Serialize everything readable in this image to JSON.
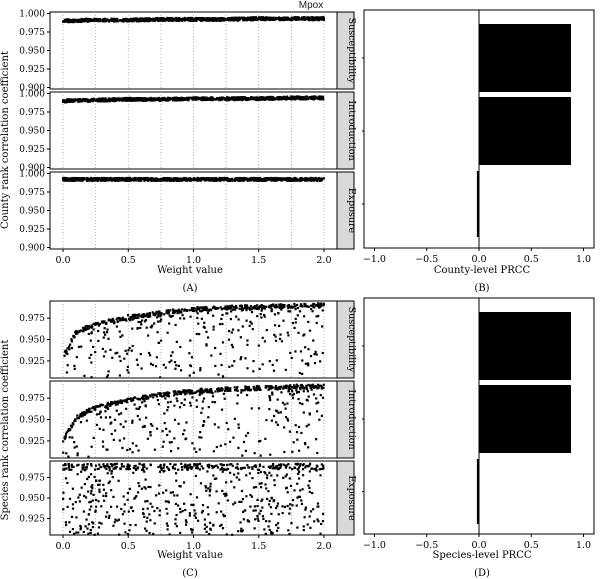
{
  "figure": {
    "title": "Mpox",
    "panel_labels": [
      "(A)",
      "(B)",
      "(C)",
      "(D)"
    ],
    "facet_labels": [
      "Susceptibility",
      "Introduction",
      "Exposure"
    ]
  },
  "chart_data": [
    {
      "id": "A",
      "type": "scatter",
      "subtype": "faceted",
      "facets": [
        "Susceptibility",
        "Introduction",
        "Exposure"
      ],
      "xlabel": "Weight value",
      "ylabel": "County rank correlation coefficient",
      "xlim": [
        -0.1,
        2.1
      ],
      "ylim": [
        0.898,
        1.002
      ],
      "xticks": [
        "0.0",
        "0.5",
        "1.0",
        "1.5",
        "2.0"
      ],
      "yticks": [
        "0.900",
        "0.925",
        "0.950",
        "0.975",
        "1.000"
      ],
      "series": [
        {
          "name": "Susceptibility",
          "x": [
            0.0,
            0.25,
            0.5,
            0.75,
            1.0,
            1.25,
            1.5,
            1.75,
            2.0
          ],
          "y": [
            0.99,
            0.991,
            0.991,
            0.992,
            0.992,
            0.992,
            0.993,
            0.993,
            0.993
          ]
        },
        {
          "name": "Introduction",
          "x": [
            0.0,
            0.25,
            0.5,
            0.75,
            1.0,
            1.25,
            1.5,
            1.75,
            2.0
          ],
          "y": [
            0.99,
            0.991,
            0.992,
            0.992,
            0.993,
            0.993,
            0.993,
            0.994,
            0.994
          ]
        },
        {
          "name": "Exposure",
          "x": [
            0.0,
            0.25,
            0.5,
            0.75,
            1.0,
            1.25,
            1.5,
            1.75,
            2.0
          ],
          "y": [
            0.992,
            0.992,
            0.992,
            0.992,
            0.992,
            0.992,
            0.992,
            0.992,
            0.992
          ]
        }
      ],
      "grid": "vertical dotted"
    },
    {
      "id": "B",
      "type": "bar",
      "orientation": "horizontal",
      "categories": [
        "Susceptibility",
        "Introduction",
        "Exposure"
      ],
      "values": [
        0.88,
        0.88,
        -0.02
      ],
      "xlabel": "County-level PRCC",
      "xlim": [
        -1.1,
        1.1
      ],
      "xticks": [
        "−1.0",
        "−0.5",
        "0.0",
        "0.5",
        "1.0"
      ]
    },
    {
      "id": "C",
      "type": "scatter",
      "subtype": "faceted",
      "facets": [
        "Susceptibility",
        "Introduction",
        "Exposure"
      ],
      "xlabel": "Weight value",
      "ylabel": "Species rank correlation coefficient",
      "xlim": [
        -0.1,
        2.1
      ],
      "ylim": [
        0.905,
        0.995
      ],
      "xticks": [
        "0.0",
        "0.5",
        "1.0",
        "1.5",
        "2.0"
      ],
      "yticks": [
        "0.925",
        "0.950",
        "0.975"
      ],
      "series": [
        {
          "name": "Susceptibility",
          "x": [
            0.0,
            0.1,
            0.25,
            0.5,
            0.75,
            1.0,
            1.25,
            1.5,
            1.75,
            2.0
          ],
          "y": [
            0.93,
            0.958,
            0.968,
            0.976,
            0.981,
            0.985,
            0.987,
            0.988,
            0.989,
            0.99
          ]
        },
        {
          "name": "Introduction",
          "x": [
            0.0,
            0.1,
            0.25,
            0.5,
            0.75,
            1.0,
            1.25,
            1.5,
            1.75,
            2.0
          ],
          "y": [
            0.925,
            0.952,
            0.964,
            0.973,
            0.979,
            0.983,
            0.985,
            0.987,
            0.988,
            0.989
          ]
        },
        {
          "name": "Exposure",
          "x": [
            0.0,
            0.5,
            1.0,
            1.5,
            2.0
          ],
          "y": [
            0.988,
            0.988,
            0.988,
            0.988,
            0.988
          ]
        }
      ],
      "grid": "vertical dotted"
    },
    {
      "id": "D",
      "type": "bar",
      "orientation": "horizontal",
      "categories": [
        "Susceptibility",
        "Introduction",
        "Exposure"
      ],
      "values": [
        0.88,
        0.88,
        -0.02
      ],
      "xlabel": "Species-level PRCC",
      "xlim": [
        -1.1,
        1.1
      ],
      "xticks": [
        "−1.0",
        "−0.5",
        "0.0",
        "0.5",
        "1.0"
      ]
    }
  ]
}
